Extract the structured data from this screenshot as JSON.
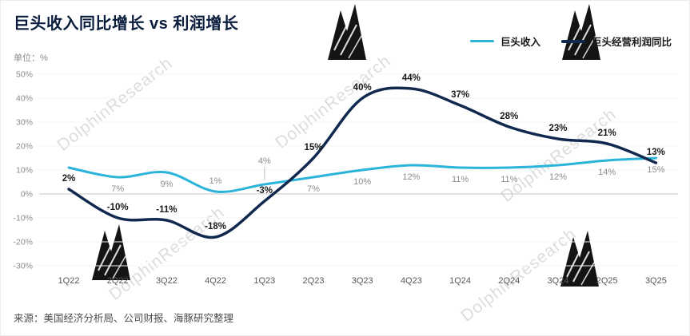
{
  "header": {
    "title": "巨头收入同比增长 vs 利润增长",
    "unit_label": "单位：%"
  },
  "legend": {
    "revenue_label": "巨头收入",
    "profit_label": "巨头经营利润同比"
  },
  "colors": {
    "revenue_line": "#2bb4d9",
    "profit_line": "#12294f",
    "title_navy": "#0a1d3d",
    "zero_line": "#c4c4c4",
    "watermark": "#d7d7d7"
  },
  "chart_data": {
    "type": "line",
    "title": "巨头收入同比增长 vs 利润增长",
    "unit": "%",
    "legend_position": "top-right",
    "grid": false,
    "ylim": [
      -30,
      50
    ],
    "y_ticks": [
      "50%",
      "40%",
      "30%",
      "20%",
      "10%",
      "0%",
      "-10%",
      "-20%",
      "-30%"
    ],
    "categories": [
      "1Q22",
      "2Q22",
      "3Q22",
      "4Q22",
      "1Q23",
      "2Q23",
      "3Q23",
      "4Q23",
      "1Q24",
      "2Q24",
      "3Q24",
      "2Q25",
      "3Q25"
    ],
    "series": [
      {
        "name": "巨头收入",
        "color": "#2bb4d9",
        "width": 3,
        "label_style": "muted",
        "values": [
          11,
          7,
          9,
          1,
          4,
          7,
          10,
          12,
          11,
          11,
          12,
          14,
          15
        ],
        "labels": [
          "",
          "7%",
          "9%",
          "1%",
          "4%",
          "7%",
          "10%",
          "12%",
          "11%",
          "11%",
          "12%",
          "14%",
          "15%"
        ],
        "label_pos": [
          "none",
          "below",
          "below",
          "above",
          "leader",
          "below",
          "below",
          "below",
          "below",
          "below",
          "below",
          "below",
          "below"
        ]
      },
      {
        "name": "巨头经营利润同比",
        "color": "#12294f",
        "width": 3.5,
        "label_style": "strong",
        "values": [
          2,
          -10,
          -11,
          -18,
          -3,
          15,
          40,
          44,
          37,
          28,
          23,
          21,
          13
        ],
        "labels": [
          "2%",
          "-10%",
          "-11%",
          "-18%",
          "-3%",
          "15%",
          "40%",
          "44%",
          "37%",
          "28%",
          "23%",
          "21%",
          "13%"
        ],
        "label_pos": [
          "above",
          "above",
          "above",
          "above",
          "above",
          "above",
          "above",
          "above",
          "above",
          "above",
          "above",
          "above",
          "above"
        ]
      }
    ]
  },
  "watermark": {
    "text": "DolphinResearch"
  },
  "source": {
    "text": "来源：美国经济分析局、公司财报、海豚研究整理"
  }
}
